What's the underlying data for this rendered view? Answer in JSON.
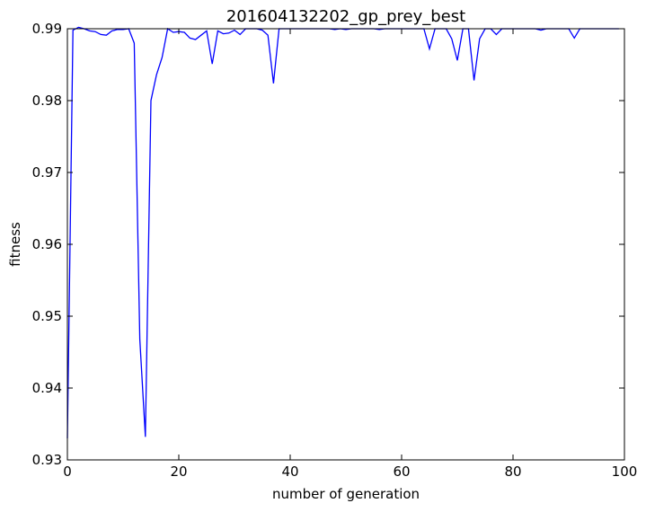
{
  "chart_data": {
    "type": "line",
    "title": "201604132202_gp_prey_best",
    "xlabel": "number of generation",
    "ylabel": "fitness",
    "xlim": [
      0,
      100
    ],
    "ylim": [
      0.93,
      0.99
    ],
    "xticks": [
      "0",
      "20",
      "40",
      "60",
      "80",
      "100"
    ],
    "yticks": [
      "0.93",
      "0.94",
      "0.95",
      "0.96",
      "0.97",
      "0.98",
      "0.99"
    ],
    "grid": false,
    "line_color": "#0000ff",
    "series": [
      {
        "x": [
          0,
          1,
          2,
          3,
          4,
          5,
          6,
          7,
          8,
          9,
          10,
          11,
          12,
          13,
          14,
          15,
          16,
          17,
          18,
          19,
          20,
          21,
          22,
          23,
          24,
          25,
          26,
          27,
          28,
          29,
          30,
          31,
          32,
          33,
          34,
          35,
          36,
          37,
          38,
          39,
          40,
          41,
          42,
          43,
          44,
          45,
          46,
          47,
          48,
          49,
          50,
          51,
          52,
          53,
          54,
          55,
          56,
          57,
          58,
          59,
          60,
          61,
          62,
          63,
          64,
          65,
          66,
          67,
          68,
          69,
          70,
          71,
          72,
          73,
          74,
          75,
          76,
          77,
          78,
          79,
          80,
          81,
          82,
          83,
          84,
          85,
          86,
          87,
          88,
          89,
          90,
          91,
          92,
          93,
          94,
          95,
          96,
          97,
          98,
          99
        ],
        "values": [
          0.933,
          0.9898,
          0.9902,
          0.99,
          0.9897,
          0.9896,
          0.9892,
          0.9891,
          0.9897,
          0.9899,
          0.9899,
          0.99,
          0.988,
          0.9468,
          0.9332,
          0.98,
          0.9836,
          0.986,
          0.99,
          0.9895,
          0.9896,
          0.9895,
          0.9887,
          0.9885,
          0.9891,
          0.9897,
          0.9851,
          0.9897,
          0.9893,
          0.9894,
          0.9898,
          0.9892,
          0.99,
          0.99,
          0.99,
          0.9898,
          0.9891,
          0.9824,
          0.99,
          0.99,
          0.99,
          0.99,
          0.99,
          0.99,
          0.99,
          0.99,
          0.99,
          0.99,
          0.9899,
          0.99,
          0.9899,
          0.99,
          0.99,
          0.99,
          0.99,
          0.99,
          0.9899,
          0.99,
          0.99,
          0.99,
          0.99,
          0.99,
          0.99,
          0.99,
          0.99,
          0.9872,
          0.99,
          0.99,
          0.99,
          0.9886,
          0.9856,
          0.99,
          0.99,
          0.9828,
          0.9886,
          0.99,
          0.99,
          0.9892,
          0.99,
          0.99,
          0.99,
          0.99,
          0.99,
          0.99,
          0.99,
          0.9898,
          0.99,
          0.99,
          0.99,
          0.99,
          0.99,
          0.9887,
          0.99,
          0.99,
          0.99,
          0.99,
          0.99,
          0.99,
          0.99,
          0.99
        ]
      }
    ]
  }
}
